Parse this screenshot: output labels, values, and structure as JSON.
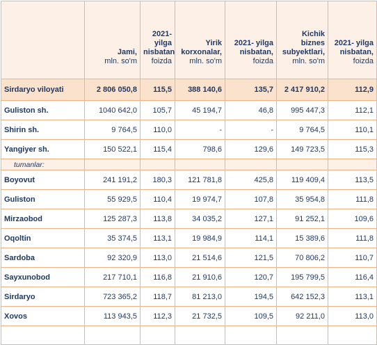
{
  "header": {
    "columns": [
      {
        "title": "Jami,",
        "unit": "mln. so'm"
      },
      {
        "title": "2021-yilga nisbatan,",
        "unit": "foizda"
      },
      {
        "title": "Yirik korxonalar,",
        "unit": "mln. so'm"
      },
      {
        "title": "2021- yilga nisbatan,",
        "unit": "foizda"
      },
      {
        "title": "Kichik biznes subyektlari,",
        "unit": "mln. so'm"
      },
      {
        "title": "2021- yilga nisbatan,",
        "unit": "foizda"
      }
    ]
  },
  "total_row": [
    "Sirdaryo viloyati",
    "2 806 050,8",
    "115,5",
    "388 140,6",
    "135,7",
    "2 417 910,2",
    "112,9"
  ],
  "cities": [
    [
      "Guliston  sh.",
      "1040 642,0",
      "105,7",
      "45 194,7",
      "46,8",
      "995 447,3",
      "112,1"
    ],
    [
      "Shirin sh.",
      "9 764,5",
      "110,0",
      "-",
      "-",
      "9 764,5",
      "110,1"
    ],
    [
      "Yangiyer sh.",
      "150 522,1",
      "115,4",
      "798,6",
      "129,6",
      "149 723,5",
      "115,3"
    ]
  ],
  "section_label": "tumanlar:",
  "districts": [
    [
      "Boyovut",
      "241 191,2",
      "180,3",
      "121 781,8",
      "425,8",
      "119 409,4",
      "113,5"
    ],
    [
      "Guliston",
      "55 929,5",
      "110,4",
      "19 974,7",
      "107,8",
      "35 954,8",
      "111,8"
    ],
    [
      "Mirzaobod",
      "125 287,3",
      "113,8",
      "34 035,2",
      "127,1",
      "91 252,1",
      "109,6"
    ],
    [
      "Oqoltin",
      "35 374,5",
      "113,1",
      "19 984,9",
      "114,1",
      "15 389,6",
      "111,8"
    ],
    [
      "Sardoba",
      "92 320,9",
      "113,0",
      "21 514,6",
      "121,5",
      "70 806,2",
      "110,7"
    ],
    [
      "Sayxunobod",
      "217 710,1",
      "116,8",
      "21 910,6",
      "120,7",
      "195 799,5",
      "116,4"
    ],
    [
      "Sirdaryo",
      "723 365,2",
      "118,7",
      "81 213,0",
      "194,5",
      "642 152,3",
      "113,1"
    ],
    [
      "Xovos",
      "113 943,5",
      "112,3",
      "21 732,5",
      "109,5",
      "92 211,0",
      "113,0"
    ]
  ]
}
